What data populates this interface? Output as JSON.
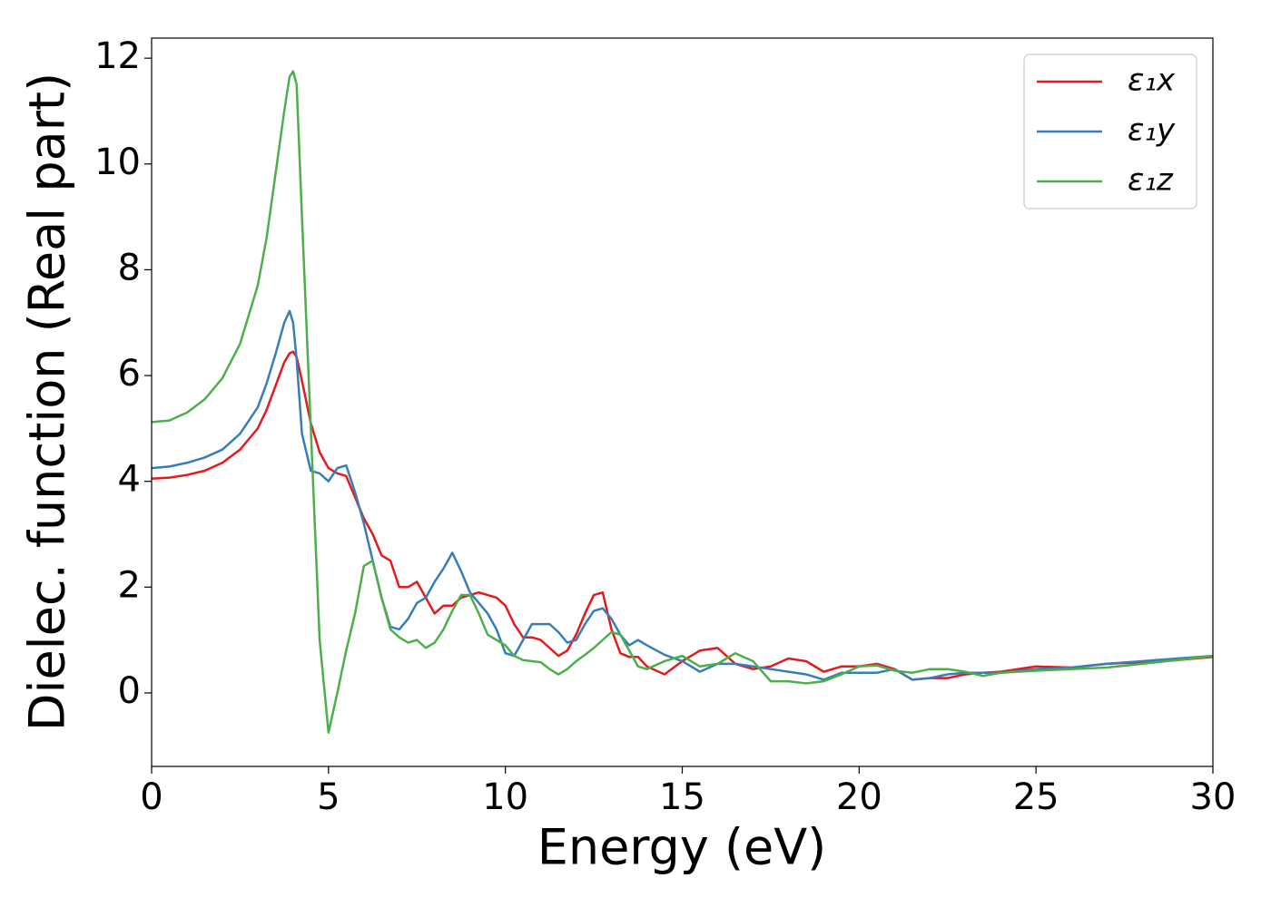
{
  "chart_data": {
    "type": "line",
    "xlabel": "Energy (eV)",
    "ylabel": "Dielec. function (Real part)",
    "x": [
      0,
      0.5,
      1,
      1.5,
      2,
      2.5,
      3,
      3.25,
      3.5,
      3.75,
      3.9,
      4.0,
      4.1,
      4.25,
      4.5,
      4.75,
      5,
      5.25,
      5.5,
      5.75,
      6,
      6.25,
      6.5,
      6.75,
      7,
      7.25,
      7.5,
      7.75,
      8,
      8.25,
      8.5,
      8.75,
      9,
      9.25,
      9.5,
      9.75,
      10,
      10.25,
      10.5,
      10.75,
      11,
      11.25,
      11.5,
      11.75,
      12,
      12.25,
      12.5,
      12.75,
      13,
      13.25,
      13.5,
      13.75,
      14,
      14.5,
      15,
      15.5,
      16,
      16.5,
      17,
      17.5,
      18,
      18.5,
      19,
      19.5,
      20,
      20.5,
      21,
      21.5,
      22,
      22.5,
      23,
      23.5,
      24,
      25,
      26,
      27,
      28,
      29,
      30
    ],
    "series": [
      {
        "name": "ε₁x",
        "color": "#e41a1c",
        "values": [
          4.05,
          4.07,
          4.12,
          4.2,
          4.35,
          4.6,
          5.0,
          5.35,
          5.8,
          6.25,
          6.42,
          6.45,
          6.35,
          5.9,
          5.1,
          4.55,
          4.25,
          4.15,
          4.1,
          3.7,
          3.3,
          3.0,
          2.6,
          2.5,
          2.0,
          2.0,
          2.1,
          1.8,
          1.5,
          1.65,
          1.65,
          1.8,
          1.85,
          1.9,
          1.85,
          1.8,
          1.65,
          1.3,
          1.05,
          1.05,
          1.0,
          0.85,
          0.7,
          0.8,
          1.1,
          1.5,
          1.85,
          1.9,
          1.2,
          0.75,
          0.68,
          0.68,
          0.5,
          0.35,
          0.6,
          0.8,
          0.85,
          0.55,
          0.45,
          0.5,
          0.65,
          0.6,
          0.4,
          0.5,
          0.5,
          0.55,
          0.45,
          0.25,
          0.28,
          0.28,
          0.35,
          0.38,
          0.4,
          0.5,
          0.48,
          0.55,
          0.58,
          0.62,
          0.68
        ]
      },
      {
        "name": "ε₁y",
        "color": "#377eb8",
        "values": [
          4.25,
          4.28,
          4.35,
          4.45,
          4.6,
          4.9,
          5.4,
          5.85,
          6.4,
          7.0,
          7.22,
          7.0,
          6.3,
          4.9,
          4.2,
          4.15,
          4.0,
          4.25,
          4.3,
          3.8,
          3.2,
          2.5,
          1.8,
          1.25,
          1.2,
          1.4,
          1.7,
          1.8,
          2.1,
          2.35,
          2.65,
          2.3,
          1.9,
          1.7,
          1.5,
          1.2,
          0.75,
          0.7,
          1.0,
          1.3,
          1.3,
          1.3,
          1.15,
          0.95,
          1.0,
          1.3,
          1.55,
          1.6,
          1.4,
          1.1,
          0.9,
          1.0,
          0.9,
          0.72,
          0.6,
          0.4,
          0.55,
          0.55,
          0.5,
          0.45,
          0.4,
          0.35,
          0.25,
          0.38,
          0.38,
          0.38,
          0.45,
          0.25,
          0.28,
          0.35,
          0.38,
          0.38,
          0.38,
          0.45,
          0.48,
          0.55,
          0.6,
          0.65,
          0.7
        ]
      },
      {
        "name": "ε₁z",
        "color": "#4daf4a",
        "values": [
          5.12,
          5.15,
          5.3,
          5.55,
          5.95,
          6.6,
          7.7,
          8.6,
          9.8,
          11.0,
          11.65,
          11.75,
          11.5,
          9.0,
          5.0,
          1.0,
          -0.75,
          0.0,
          0.8,
          1.5,
          2.4,
          2.5,
          1.8,
          1.2,
          1.05,
          0.95,
          1.0,
          0.85,
          0.95,
          1.2,
          1.55,
          1.85,
          1.85,
          1.5,
          1.1,
          1.0,
          0.9,
          0.7,
          0.62,
          0.6,
          0.58,
          0.45,
          0.35,
          0.45,
          0.6,
          0.72,
          0.85,
          1.0,
          1.15,
          1.1,
          0.8,
          0.5,
          0.45,
          0.6,
          0.7,
          0.5,
          0.55,
          0.75,
          0.6,
          0.22,
          0.22,
          0.18,
          0.22,
          0.35,
          0.5,
          0.52,
          0.42,
          0.38,
          0.45,
          0.45,
          0.4,
          0.32,
          0.38,
          0.42,
          0.45,
          0.48,
          0.55,
          0.62,
          0.7
        ]
      }
    ],
    "xlim": [
      0,
      30
    ],
    "xticks": [
      0,
      5,
      10,
      15,
      20,
      25,
      30
    ],
    "ylim": [
      -1.39,
      12.38
    ],
    "yticks": [
      0,
      2,
      4,
      6,
      8,
      10,
      12
    ],
    "legend": "upper right"
  }
}
